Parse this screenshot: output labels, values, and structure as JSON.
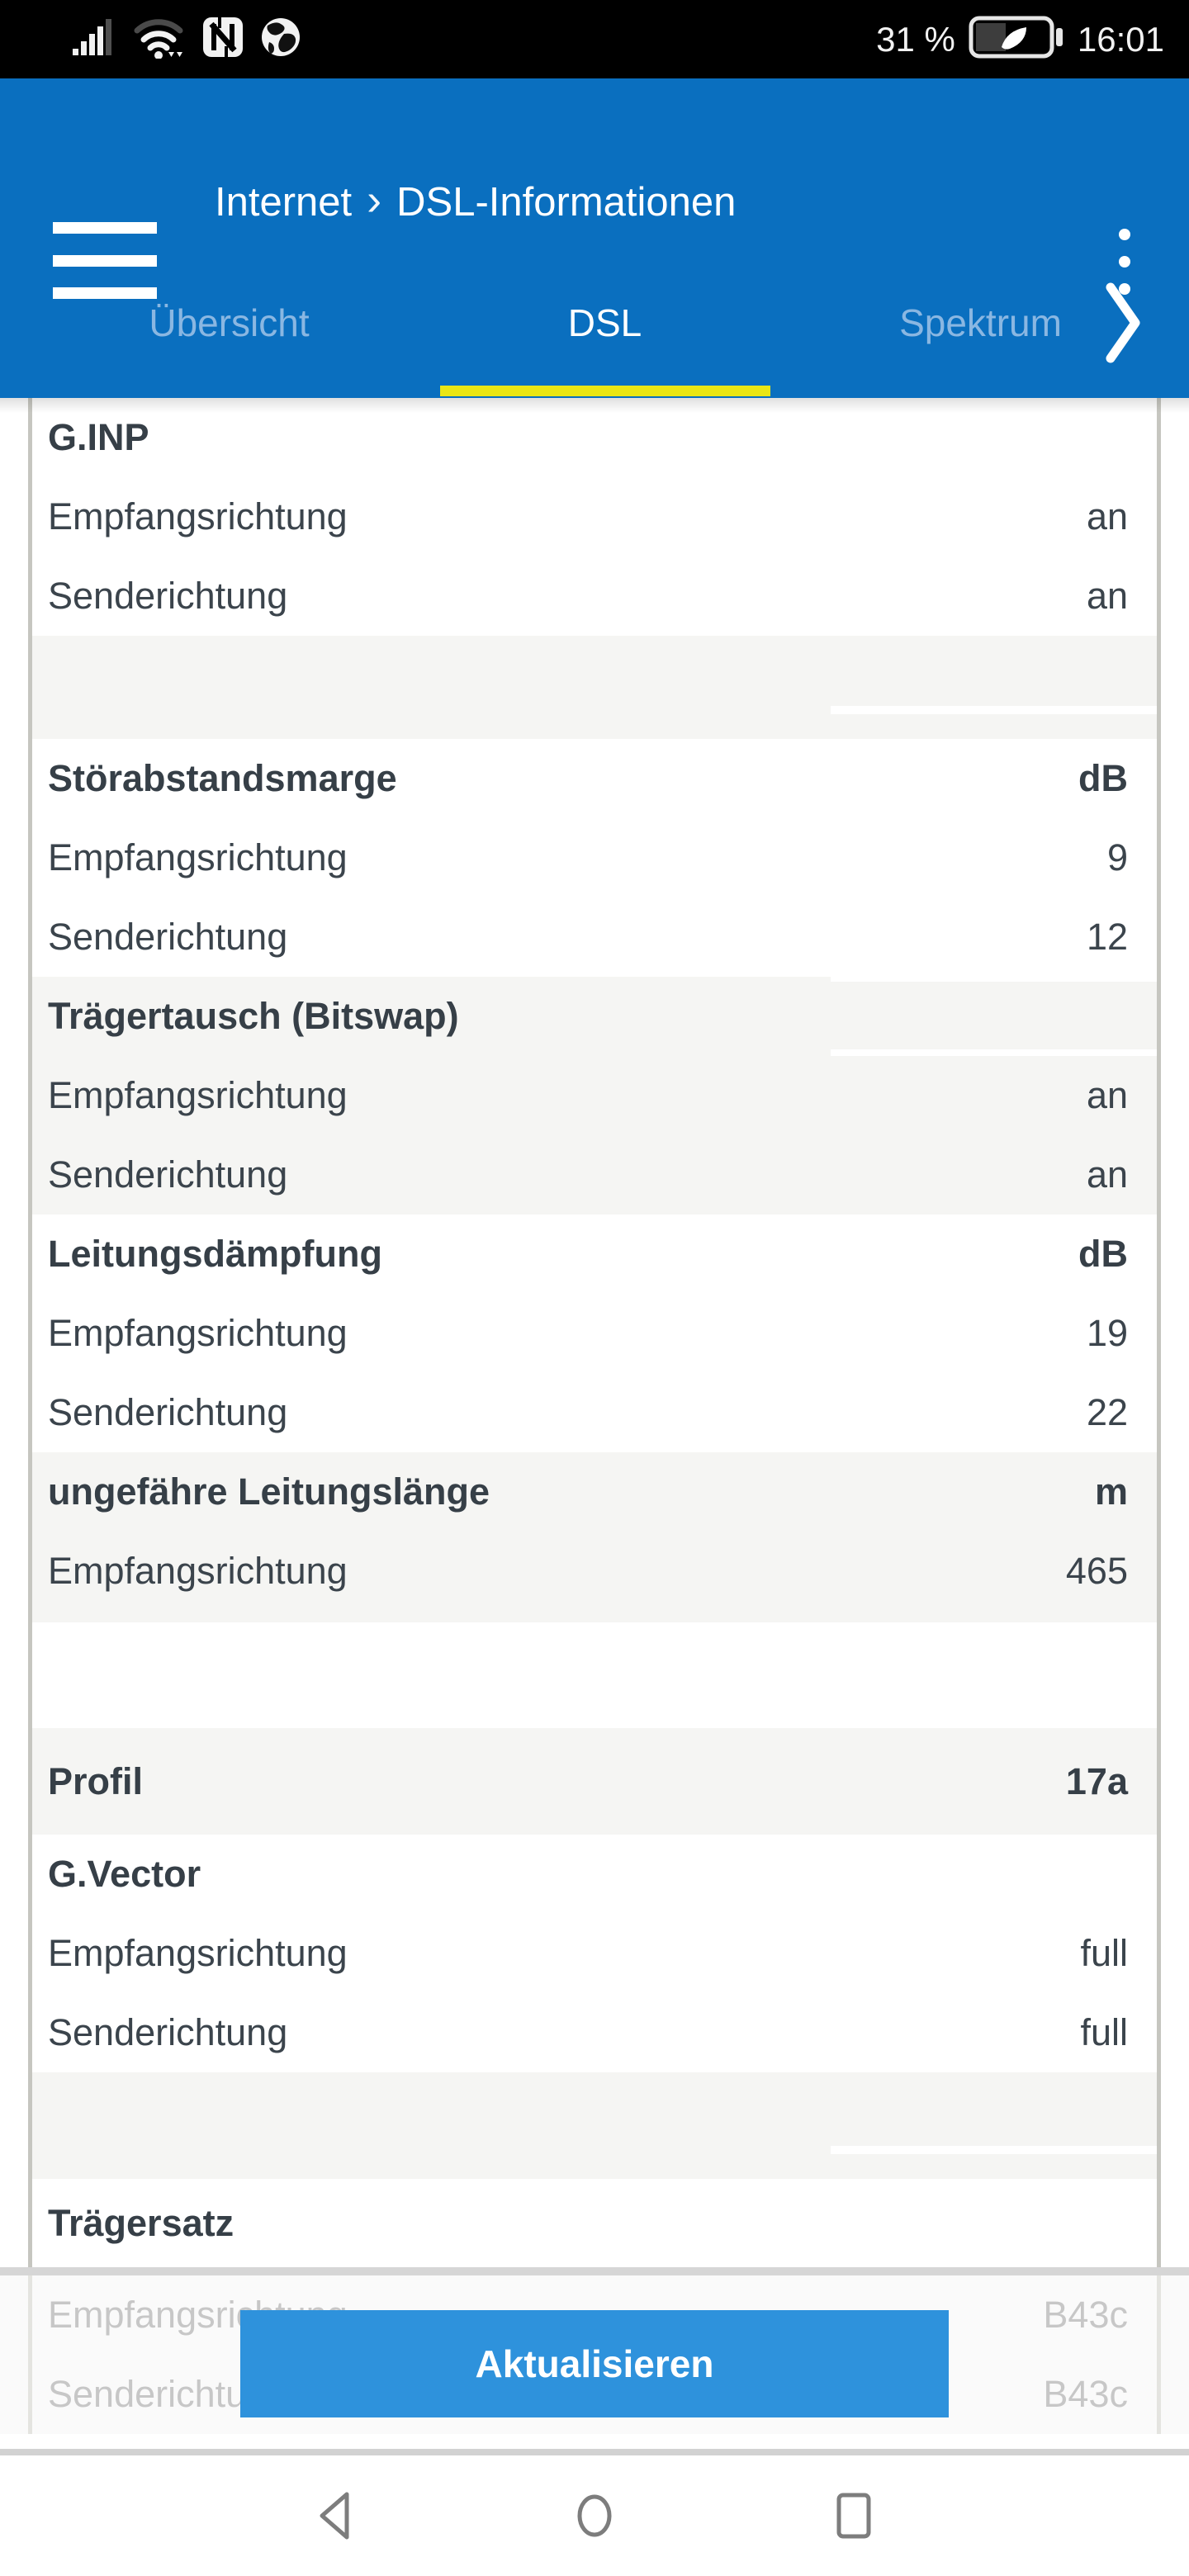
{
  "colors": {
    "header_blue": "#0a6fbf",
    "tab_inactive": "#8ab7e2",
    "tab_underline_yellow": "#eae614",
    "button_blue": "#2e92dc"
  },
  "status_bar": {
    "battery_percent": "31 %",
    "time": "16:01",
    "icons": [
      "signal-strength-icon",
      "wifi-icon",
      "nfc-icon",
      "globe-icon",
      "battery-saver-icon"
    ]
  },
  "header": {
    "breadcrumb_left": "Internet",
    "breadcrumb_separator": "›",
    "breadcrumb_right": "DSL-Informationen"
  },
  "tabs": [
    {
      "label": "Übersicht",
      "active": false
    },
    {
      "label": "DSL",
      "active": true
    },
    {
      "label": "Spektrum",
      "active": false
    }
  ],
  "table": {
    "rows": [
      {
        "kind": "row",
        "label": "G.INP",
        "value": "",
        "bold": true,
        "shade": "white"
      },
      {
        "kind": "row",
        "label": "Empfangsrichtung",
        "value": "an",
        "bold": false,
        "shade": "white"
      },
      {
        "kind": "row",
        "label": "Senderichtung",
        "value": "an",
        "bold": false,
        "shade": "white"
      },
      {
        "kind": "separator",
        "shade": "gray",
        "h": 125,
        "strip": true
      },
      {
        "kind": "row",
        "label": "Störabstandsmarge",
        "value": "dB",
        "bold": true,
        "shade": "white"
      },
      {
        "kind": "row",
        "label": "Empfangsrichtung",
        "value": "9",
        "bold": false,
        "shade": "white"
      },
      {
        "kind": "row",
        "label": "Senderichtung",
        "value": "12",
        "bold": false,
        "shade": "white"
      },
      {
        "kind": "row",
        "label": "Trägertausch (Bitswap)",
        "value": "",
        "bold": true,
        "shade": "gray",
        "strip_top": true,
        "strip_bottom": true
      },
      {
        "kind": "row",
        "label": "Empfangsrichtung",
        "value": "an",
        "bold": false,
        "shade": "gray"
      },
      {
        "kind": "row",
        "label": "Senderichtung",
        "value": "an",
        "bold": false,
        "shade": "gray"
      },
      {
        "kind": "row",
        "label": "Leitungsdämpfung",
        "value": "dB",
        "bold": true,
        "shade": "white"
      },
      {
        "kind": "row",
        "label": "Empfangsrichtung",
        "value": "19",
        "bold": false,
        "shade": "white"
      },
      {
        "kind": "row",
        "label": "Senderichtung",
        "value": "22",
        "bold": false,
        "shade": "white"
      },
      {
        "kind": "row",
        "label": "ungefähre Leitungslänge",
        "value": "m",
        "bold": true,
        "shade": "gray"
      },
      {
        "kind": "row",
        "label": "Empfangsrichtung",
        "value": "465",
        "bold": false,
        "shade": "gray"
      },
      {
        "kind": "spacer",
        "shade": "gray",
        "h": 14
      },
      {
        "kind": "spacer",
        "shade": "white",
        "h": 128
      },
      {
        "kind": "row",
        "label": "Profil",
        "value": "17a",
        "bold": true,
        "shade": "gray",
        "h": 129
      },
      {
        "kind": "row",
        "label": "G.Vector",
        "value": "",
        "bold": true,
        "shade": "white"
      },
      {
        "kind": "row",
        "label": "Empfangsrichtung",
        "value": "full",
        "bold": false,
        "shade": "white"
      },
      {
        "kind": "row",
        "label": "Senderichtung",
        "value": "full",
        "bold": false,
        "shade": "white"
      },
      {
        "kind": "separator",
        "shade": "gray",
        "h": 129,
        "strip": true
      },
      {
        "kind": "row",
        "label": "Trägersatz",
        "value": "",
        "bold": true,
        "shade": "white",
        "h": 107
      }
    ]
  },
  "footer": {
    "faded_rows": [
      {
        "label": "Empfangsrichtung",
        "value": "B43c"
      },
      {
        "label": "Senderichtung",
        "value": "B43c"
      }
    ],
    "refresh_label": "Aktualisieren"
  },
  "nav": {
    "buttons": [
      "back",
      "home",
      "recents"
    ]
  }
}
